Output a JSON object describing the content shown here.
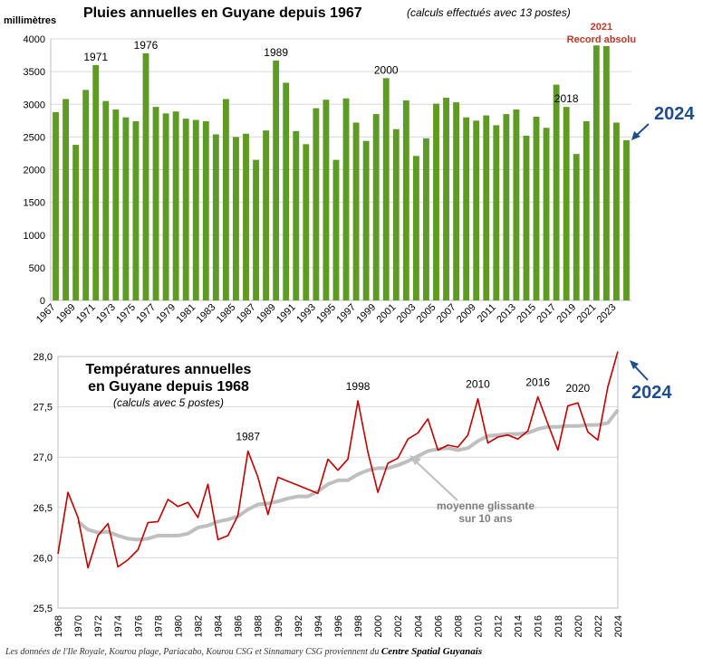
{
  "chart_data": [
    {
      "type": "bar",
      "title": "Pluies annuelles en Guyane depuis 1967",
      "subtitle": "(calculs effectués avec 13 postes)",
      "ylabel": "millimètres",
      "ylim": [
        0,
        4000
      ],
      "yticks": [
        0,
        500,
        1000,
        1500,
        2000,
        2500,
        3000,
        3500,
        4000
      ],
      "grid": true,
      "color": "#5e9b25",
      "categories": [
        1967,
        1968,
        1969,
        1970,
        1971,
        1972,
        1973,
        1974,
        1975,
        1976,
        1977,
        1978,
        1979,
        1980,
        1981,
        1982,
        1983,
        1984,
        1985,
        1986,
        1987,
        1988,
        1989,
        1990,
        1991,
        1992,
        1993,
        1994,
        1995,
        1996,
        1997,
        1998,
        1999,
        2000,
        2001,
        2002,
        2003,
        2004,
        2005,
        2006,
        2007,
        2008,
        2009,
        2010,
        2011,
        2012,
        2013,
        2014,
        2015,
        2016,
        2017,
        2018,
        2019,
        2020,
        2021,
        2022,
        2023,
        2024
      ],
      "xtick_labels": [
        "1967",
        "1969",
        "1971",
        "1973",
        "1975",
        "1977",
        "1979",
        "1981",
        "1983",
        "1985",
        "1987",
        "1989",
        "1991",
        "1993",
        "1995",
        "1997",
        "1999",
        "2001",
        "2003",
        "2005",
        "2007",
        "2009",
        "2011",
        "2013",
        "2015",
        "2017",
        "2019",
        "2021",
        "2023"
      ],
      "values": [
        2880,
        3080,
        2380,
        3220,
        3600,
        3050,
        2920,
        2800,
        2740,
        3780,
        2960,
        2860,
        2890,
        2780,
        2760,
        2740,
        2540,
        3080,
        2500,
        2550,
        2150,
        2600,
        3670,
        3330,
        2590,
        2390,
        2940,
        3070,
        2150,
        3090,
        2720,
        2440,
        2850,
        3400,
        2620,
        3060,
        2210,
        2480,
        3010,
        3100,
        3030,
        2800,
        2750,
        2830,
        2680,
        2850,
        2920,
        2520,
        2810,
        2640,
        3300,
        2960,
        2240,
        2740,
        3900,
        3890,
        2720,
        2450
      ],
      "annotations": [
        {
          "year": 1971,
          "text": "1971"
        },
        {
          "year": 1976,
          "text": "1976"
        },
        {
          "year": 1989,
          "text": "1989"
        },
        {
          "year": 2000,
          "text": "2000"
        },
        {
          "year": 2018,
          "text": "2018"
        },
        {
          "year": 2021,
          "text": "2021"
        },
        {
          "year": 2021,
          "text": "Record absolu"
        }
      ],
      "callout": "2024",
      "callout_color": "#1f4e8c",
      "record_color": "#c0392b"
    },
    {
      "type": "line",
      "title_lines": [
        "Températures annuelles",
        "en Guyane depuis 1968"
      ],
      "subtitle": "(calculs avec 5 postes)",
      "ylim": [
        25.5,
        28.0
      ],
      "yticks": [
        "25,5",
        "26,0",
        "26,5",
        "27,0",
        "27,5",
        "28,0"
      ],
      "grid": true,
      "xtick_labels": [
        "1968",
        "1970",
        "1972",
        "1974",
        "1976",
        "1978",
        "1980",
        "1982",
        "1984",
        "1986",
        "1988",
        "1990",
        "1992",
        "1994",
        "1996",
        "1998",
        "2000",
        "2002",
        "2004",
        "2006",
        "2008",
        "2010",
        "2012",
        "2014",
        "2016",
        "2018",
        "2020",
        "2022",
        "2024"
      ],
      "series": [
        {
          "color": "#c00000",
          "x": [
            1968,
            1969,
            1970,
            1971,
            1972,
            1973,
            1974,
            1975,
            1976,
            1977,
            1978,
            1979,
            1980,
            1981,
            1982,
            1983,
            1984,
            1985,
            1986,
            1987,
            1988,
            1989,
            1990,
            1991,
            1992,
            1993,
            1994,
            1995,
            1996,
            1997,
            1998,
            1999,
            2000,
            2001,
            2002,
            2003,
            2004,
            2005,
            2006,
            2007,
            2008,
            2009,
            2010,
            2011,
            2012,
            2013,
            2014,
            2015,
            2016,
            2017,
            2018,
            2019,
            2020,
            2021,
            2022,
            2023,
            2024
          ],
          "values": [
            26.04,
            26.65,
            26.4,
            25.9,
            26.22,
            26.34,
            25.91,
            25.98,
            26.08,
            26.35,
            26.36,
            26.58,
            26.51,
            26.55,
            26.4,
            26.73,
            26.18,
            26.22,
            26.42,
            27.06,
            26.8,
            26.43,
            26.8,
            26.76,
            26.72,
            26.68,
            26.64,
            26.98,
            26.87,
            26.98,
            27.56,
            27.05,
            26.65,
            26.94,
            26.99,
            27.18,
            27.24,
            27.38,
            27.07,
            27.12,
            27.1,
            27.22,
            27.58,
            27.14,
            27.2,
            27.22,
            27.18,
            27.26,
            27.6,
            27.33,
            27.07,
            27.51,
            27.54,
            27.25,
            27.17,
            27.7,
            28.05
          ]
        },
        {
          "name": "moyenne glissante sur 10 ans",
          "color": "#bfbfbf",
          "x": [
            1970,
            1971,
            1972,
            1973,
            1974,
            1975,
            1976,
            1977,
            1978,
            1979,
            1980,
            1981,
            1982,
            1983,
            1984,
            1985,
            1986,
            1987,
            1988,
            1989,
            1990,
            1991,
            1992,
            1993,
            1994,
            1995,
            1996,
            1997,
            1998,
            1999,
            2000,
            2001,
            2002,
            2003,
            2004,
            2005,
            2006,
            2007,
            2008,
            2009,
            2010,
            2011,
            2012,
            2013,
            2014,
            2015,
            2016,
            2017,
            2018,
            2019,
            2020,
            2021,
            2022,
            2023,
            2024
          ],
          "values": [
            26.36,
            26.28,
            26.25,
            26.26,
            26.22,
            26.19,
            26.18,
            26.19,
            26.22,
            26.22,
            26.22,
            26.24,
            26.3,
            26.32,
            26.36,
            26.38,
            26.41,
            26.48,
            26.53,
            26.54,
            26.56,
            26.59,
            26.61,
            26.61,
            26.66,
            26.73,
            26.77,
            26.77,
            26.83,
            26.87,
            26.89,
            26.89,
            26.92,
            26.96,
            27.01,
            27.06,
            27.08,
            27.09,
            27.07,
            27.09,
            27.16,
            27.21,
            27.22,
            27.23,
            27.23,
            27.24,
            27.28,
            27.3,
            27.3,
            27.31,
            27.31,
            27.32,
            27.32,
            27.34,
            27.47
          ]
        }
      ],
      "annotations": [
        {
          "year": 1987,
          "text": "1987"
        },
        {
          "year": 1998,
          "text": "1998"
        },
        {
          "year": 2010,
          "text": "2010"
        },
        {
          "year": 2016,
          "text": "2016"
        },
        {
          "year": 2020,
          "text": "2020"
        }
      ],
      "moving_avg_label": [
        "moyenne glissante",
        "sur 10 ans"
      ],
      "callout": "2024",
      "callout_color": "#1f4e8c"
    }
  ],
  "footer": {
    "text": "Les données de l'Ile Royale, Kourou plage, Pariacabo, Kourou CSG et Sinnamary CSG proviennent du",
    "source": "Centre Spatial Guyanais"
  }
}
